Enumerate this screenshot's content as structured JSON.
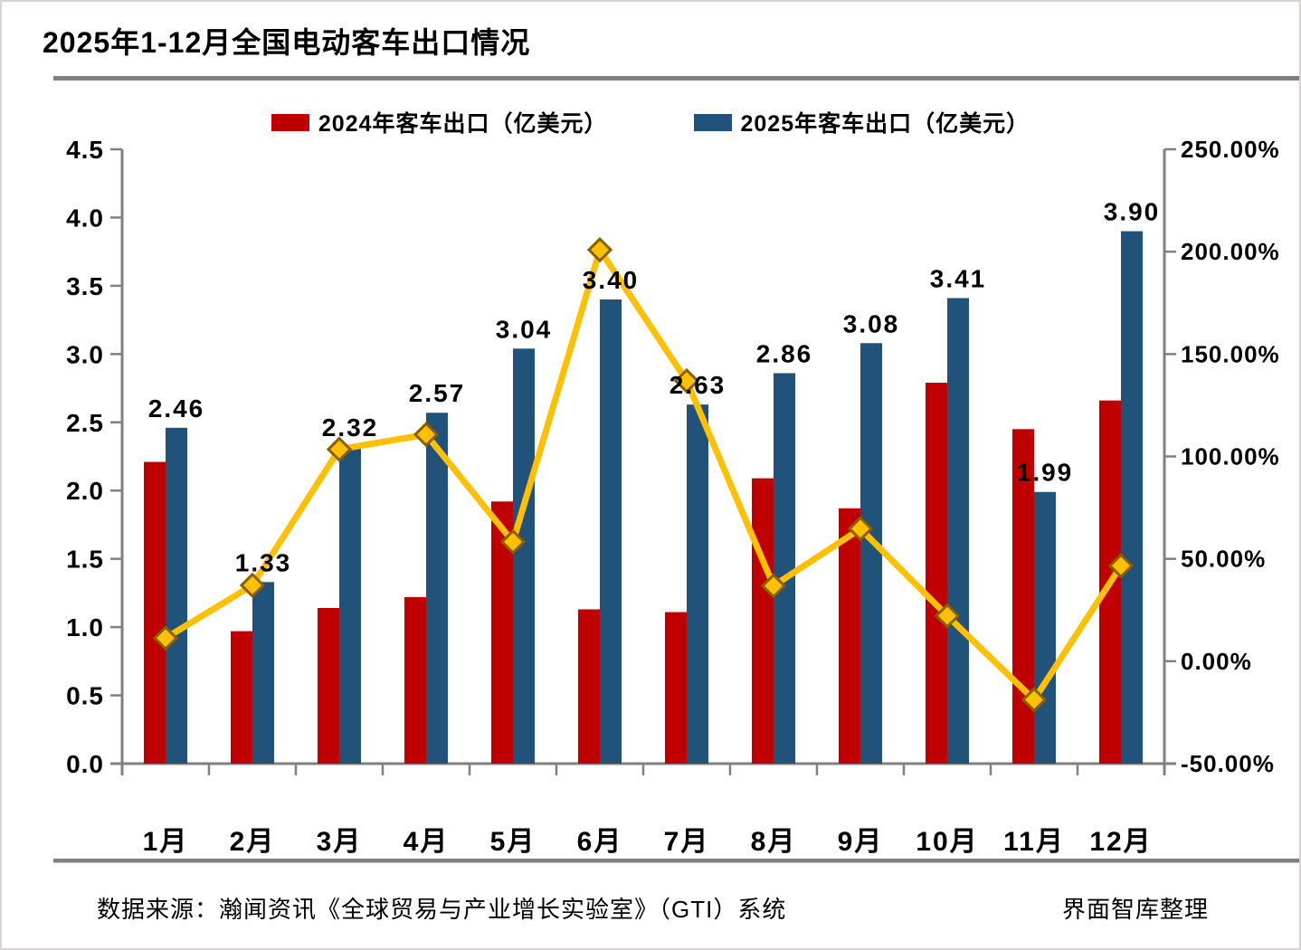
{
  "title": "2025年1-12月全国电动客车出口情况",
  "legend": [
    {
      "label": "2024年客车出口（亿美元）",
      "color": "#c00000"
    },
    {
      "label": "2025年客车出口（亿美元）",
      "color": "#20527a"
    }
  ],
  "colors": {
    "bar_2024": "#c00000",
    "bar_2025": "#20527a",
    "growth_line": "#ffc000",
    "marker_edge": "#8a5f00",
    "axis": "#808080",
    "text": "#000000",
    "rule": "#808080"
  },
  "chart_data": {
    "type": "bar+line",
    "title": "2025年1-12月全国电动客车出口情况",
    "categories": [
      "1月",
      "2月",
      "3月",
      "4月",
      "5月",
      "6月",
      "7月",
      "8月",
      "9月",
      "10月",
      "11月",
      "12月"
    ],
    "series": [
      {
        "id": "exports-2024-bar",
        "name": "2024年客车出口（亿美元）",
        "type": "bar",
        "color": "#c00000",
        "values": [
          2.21,
          0.97,
          1.14,
          1.22,
          1.92,
          1.13,
          1.11,
          2.09,
          1.87,
          2.79,
          2.45,
          2.66
        ]
      },
      {
        "id": "exports-2025-bar",
        "name": "2025年客车出口（亿美元）",
        "type": "bar",
        "color": "#20527a",
        "values": [
          2.46,
          1.33,
          2.32,
          2.57,
          3.04,
          3.4,
          2.63,
          2.86,
          3.08,
          3.41,
          1.99,
          3.9
        ],
        "labels": [
          "2.46",
          "1.33",
          "2.32",
          "2.57",
          "3.04",
          "3.40",
          "2.63",
          "2.86",
          "3.08",
          "3.41",
          "1.99",
          "3.90"
        ]
      },
      {
        "id": "yoy-growth-line",
        "type": "line",
        "axis": "right",
        "color": "#ffc000",
        "values_pct": [
          11.3,
          37.1,
          103.5,
          110.7,
          58.3,
          200.9,
          136.9,
          36.8,
          64.7,
          22.2,
          -18.8,
          46.6
        ]
      }
    ],
    "left_axis": {
      "min": 0,
      "max": 4.5,
      "ticks": [
        "0.0",
        "0.5",
        "1.0",
        "1.5",
        "2.0",
        "2.5",
        "3.0",
        "3.5",
        "4.0",
        "4.5"
      ]
    },
    "right_axis": {
      "min": -50,
      "max": 250,
      "ticks": [
        "-50.00%",
        "0.00%",
        "50.00%",
        "100.00%",
        "150.00%",
        "200.00%",
        "250.00%"
      ]
    },
    "grid": false,
    "legend_position": "top-center"
  },
  "source": {
    "left": "数据来源：瀚闻资讯《全球贸易与产业增长实验室》（GTI）系统",
    "right": "界面智库整理"
  }
}
